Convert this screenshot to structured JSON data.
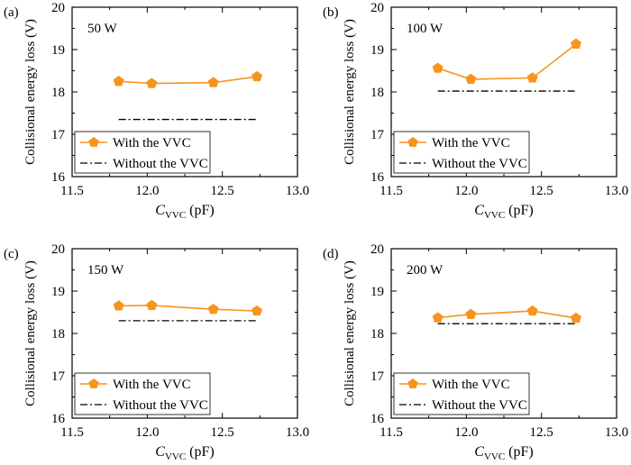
{
  "figure": {
    "background": "#ffffff",
    "series_color": "#f7941d",
    "baseline_color": "#000000"
  },
  "chart_data": [
    {
      "type": "line",
      "panel_tag": "(a)",
      "annotation": "50 W",
      "xlabel_main": "C",
      "xlabel_sub": "VVC",
      "xlabel_unit": " (pF)",
      "ylabel": "Collisional energy loss (V)",
      "xlim": [
        11.5,
        13.0
      ],
      "ylim": [
        16,
        20
      ],
      "xticks": [
        "11.5",
        "12.0",
        "12.5",
        "13.0"
      ],
      "yticks": [
        "16",
        "17",
        "18",
        "19",
        "20"
      ],
      "grid": false,
      "legend_position": "bottom-left",
      "series": [
        {
          "name": "With the VVC",
          "style": "solid-pentagon",
          "x": [
            11.81,
            12.03,
            12.44,
            12.73
          ],
          "y": [
            18.25,
            18.2,
            18.22,
            18.36
          ]
        },
        {
          "name": "Without the VVC",
          "style": "dash-dot",
          "x": [
            11.81,
            12.73
          ],
          "y": [
            17.35,
            17.35
          ]
        }
      ]
    },
    {
      "type": "line",
      "panel_tag": "(b)",
      "annotation": "100 W",
      "xlabel_main": "C",
      "xlabel_sub": "VVC",
      "xlabel_unit": " (pF)",
      "ylabel": "Collisional energy loss (V)",
      "xlim": [
        11.5,
        13.0
      ],
      "ylim": [
        16,
        20
      ],
      "xticks": [
        "11.5",
        "12.0",
        "12.5",
        "13.0"
      ],
      "yticks": [
        "16",
        "17",
        "18",
        "19",
        "20"
      ],
      "grid": false,
      "legend_position": "bottom-left",
      "series": [
        {
          "name": "With the VVC",
          "style": "solid-pentagon",
          "x": [
            11.81,
            12.03,
            12.44,
            12.73
          ],
          "y": [
            18.56,
            18.3,
            18.33,
            19.13
          ]
        },
        {
          "name": "Without the VVC",
          "style": "dash-dot",
          "x": [
            11.81,
            12.73
          ],
          "y": [
            18.02,
            18.02
          ]
        }
      ]
    },
    {
      "type": "line",
      "panel_tag": "(c)",
      "annotation": "150 W",
      "xlabel_main": "C",
      "xlabel_sub": "VVC",
      "xlabel_unit": " (pF)",
      "ylabel": "Collisional energy loss (V)",
      "xlim": [
        11.5,
        13.0
      ],
      "ylim": [
        16,
        20
      ],
      "xticks": [
        "11.5",
        "12.0",
        "12.5",
        "13.0"
      ],
      "yticks": [
        "16",
        "17",
        "18",
        "19",
        "20"
      ],
      "grid": false,
      "legend_position": "bottom-left",
      "series": [
        {
          "name": "With the VVC",
          "style": "solid-pentagon",
          "x": [
            11.81,
            12.03,
            12.44,
            12.73
          ],
          "y": [
            18.65,
            18.66,
            18.57,
            18.53
          ]
        },
        {
          "name": "Without the VVC",
          "style": "dash-dot",
          "x": [
            11.81,
            12.73
          ],
          "y": [
            18.3,
            18.3
          ]
        }
      ]
    },
    {
      "type": "line",
      "panel_tag": "(d)",
      "annotation": "200 W",
      "xlabel_main": "C",
      "xlabel_sub": "VVC",
      "xlabel_unit": " (pF)",
      "ylabel": "Collisional energy loss (V)",
      "xlim": [
        11.5,
        13.0
      ],
      "ylim": [
        16,
        20
      ],
      "xticks": [
        "11.5",
        "12.0",
        "12.5",
        "13.0"
      ],
      "yticks": [
        "16",
        "17",
        "18",
        "19",
        "20"
      ],
      "grid": false,
      "legend_position": "bottom-left",
      "series": [
        {
          "name": "With the VVC",
          "style": "solid-pentagon",
          "x": [
            11.81,
            12.03,
            12.44,
            12.73
          ],
          "y": [
            18.37,
            18.45,
            18.53,
            18.36
          ]
        },
        {
          "name": "Without the VVC",
          "style": "dash-dot",
          "x": [
            11.81,
            12.73
          ],
          "y": [
            18.23,
            18.23
          ]
        }
      ]
    }
  ]
}
